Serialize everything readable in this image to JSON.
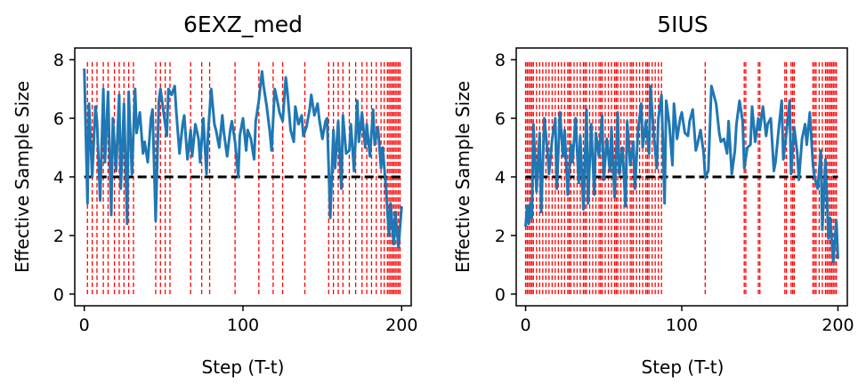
{
  "chart_data": [
    {
      "type": "line",
      "title": "6EXZ_med",
      "xlabel": "Step (T-t)",
      "ylabel": "Effective Sample Size",
      "xlim": [
        -6,
        206
      ],
      "ylim": [
        -0.4,
        8.4
      ],
      "xticks": [
        0,
        100,
        200
      ],
      "yticks": [
        0,
        2,
        4,
        6,
        8
      ],
      "threshold": {
        "y": 4,
        "style": "black dashed"
      },
      "resample_steps": [
        2,
        5,
        8,
        12,
        15,
        19,
        22,
        25,
        28,
        31,
        45,
        48,
        51,
        54,
        67,
        74,
        79,
        95,
        110,
        119,
        125,
        139,
        154,
        157,
        160,
        163,
        167,
        171,
        175,
        178,
        181,
        184,
        187,
        189,
        191,
        192,
        193,
        194,
        195,
        196,
        197,
        198,
        199
      ],
      "resample_line_style": "red dashed, y from 0 to 8",
      "series": [
        {
          "color": "#1f77b4",
          "x": [
            0,
            2,
            3,
            5,
            7,
            8,
            10,
            12,
            13,
            15,
            17,
            18,
            20,
            22,
            23,
            25,
            27,
            28,
            30,
            32,
            33,
            35,
            37,
            38,
            40,
            42,
            43,
            45,
            47,
            48,
            50,
            52,
            53,
            55,
            57,
            58,
            60,
            62,
            63,
            65,
            67,
            68,
            70,
            72,
            73,
            75,
            77,
            78,
            80,
            82,
            83,
            85,
            87,
            88,
            90,
            92,
            93,
            95,
            97,
            98,
            100,
            102,
            103,
            105,
            107,
            108,
            110,
            112,
            113,
            115,
            117,
            118,
            120,
            122,
            123,
            125,
            127,
            128,
            130,
            132,
            133,
            135,
            137,
            138,
            140,
            142,
            143,
            145,
            147,
            148,
            150,
            152,
            153,
            155,
            157,
            158,
            160,
            162,
            163,
            165,
            167,
            168,
            170,
            172,
            173,
            175,
            177,
            178,
            180,
            182,
            183,
            185,
            187,
            188,
            190,
            192,
            193,
            195,
            196,
            198,
            200
          ],
          "y": [
            7.7,
            3.1,
            6.5,
            4.0,
            6.4,
            5.9,
            3.2,
            7.0,
            4.5,
            6.9,
            2.7,
            6.0,
            4.2,
            6.8,
            3.6,
            6.5,
            2.4,
            6.9,
            4.1,
            7.0,
            5.5,
            6.2,
            4.8,
            5.2,
            4.5,
            6.0,
            6.3,
            2.5,
            6.6,
            7.0,
            6.2,
            5.4,
            7.0,
            6.8,
            7.1,
            6.2,
            4.8,
            5.8,
            6.1,
            4.6,
            5.6,
            4.7,
            5.8,
            5.3,
            4.5,
            6.0,
            4.1,
            5.5,
            7.0,
            5.8,
            5.6,
            5.0,
            6.1,
            5.5,
            4.7,
            5.6,
            5.9,
            5.2,
            4.0,
            5.4,
            6.0,
            4.9,
            5.6,
            5.3,
            4.6,
            5.9,
            6.6,
            7.6,
            7.1,
            6.4,
            5.5,
            4.9,
            7.0,
            6.5,
            6.2,
            5.9,
            7.4,
            6.9,
            5.6,
            5.2,
            6.4,
            5.8,
            6.1,
            5.4,
            5.7,
            6.3,
            6.8,
            6.1,
            6.5,
            6.0,
            5.3,
            5.9,
            6.0,
            2.6,
            5.6,
            4.3,
            5.9,
            3.6,
            6.1,
            4.8,
            4.9,
            5.8,
            4.2,
            6.6,
            5.2,
            6.2,
            5.0,
            5.8,
            4.7,
            6.3,
            5.1,
            5.7,
            4.3,
            5.0,
            3.7,
            2.0,
            3.1,
            1.7,
            2.8,
            1.6,
            3.0
          ]
        }
      ]
    },
    {
      "type": "line",
      "title": "5IUS",
      "xlabel": "Step (T-t)",
      "ylabel": "Effective Sample Size",
      "xlim": [
        -6,
        206
      ],
      "ylim": [
        -0.4,
        8.4
      ],
      "xticks": [
        0,
        100,
        200
      ],
      "yticks": [
        0,
        2,
        4,
        6,
        8
      ],
      "threshold": {
        "y": 4,
        "style": "black dashed"
      },
      "resample_steps": [
        0,
        1,
        2,
        3,
        4,
        5,
        7,
        9,
        11,
        13,
        15,
        17,
        19,
        21,
        23,
        25,
        27,
        28,
        29,
        31,
        33,
        35,
        37,
        38,
        39,
        41,
        43,
        45,
        47,
        48,
        49,
        51,
        53,
        55,
        57,
        58,
        59,
        61,
        63,
        65,
        67,
        68,
        69,
        71,
        73,
        75,
        77,
        78,
        79,
        81,
        83,
        85,
        87,
        115,
        140,
        141,
        149,
        150,
        166,
        167,
        170,
        171,
        172,
        184,
        185,
        186,
        188,
        190,
        192,
        193,
        194,
        195,
        196,
        197,
        198,
        199
      ],
      "resample_line_style": "red dashed, y from 0 to 8",
      "series": [
        {
          "color": "#1f77b4",
          "x": [
            0,
            1,
            2,
            3,
            4,
            5,
            7,
            9,
            10,
            12,
            14,
            15,
            17,
            19,
            20,
            22,
            24,
            25,
            27,
            29,
            30,
            32,
            34,
            35,
            37,
            39,
            40,
            42,
            44,
            45,
            47,
            49,
            50,
            52,
            54,
            55,
            57,
            59,
            60,
            62,
            64,
            65,
            67,
            69,
            70,
            72,
            74,
            75,
            77,
            79,
            80,
            82,
            84,
            85,
            87,
            89,
            90,
            92,
            94,
            95,
            97,
            99,
            100,
            102,
            104,
            105,
            107,
            109,
            110,
            112,
            114,
            115,
            117,
            119,
            120,
            122,
            124,
            125,
            127,
            129,
            130,
            132,
            134,
            135,
            137,
            139,
            140,
            142,
            144,
            145,
            147,
            149,
            150,
            152,
            154,
            155,
            157,
            159,
            160,
            162,
            164,
            165,
            167,
            169,
            170,
            172,
            174,
            175,
            177,
            179,
            180,
            182,
            184,
            185,
            187,
            189,
            190,
            192,
            194,
            195,
            197,
            199,
            200
          ],
          "y": [
            2.3,
            3.0,
            2.4,
            3.1,
            2.6,
            5.8,
            3.5,
            5.5,
            2.8,
            6.0,
            4.9,
            4.1,
            5.3,
            6.0,
            3.6,
            6.2,
            4.7,
            5.6,
            3.4,
            5.1,
            4.5,
            6.0,
            3.8,
            5.4,
            2.9,
            6.3,
            3.1,
            5.8,
            3.4,
            5.5,
            4.7,
            6.1,
            3.9,
            5.3,
            4.2,
            5.7,
            3.3,
            6.2,
            4.1,
            5.0,
            3.0,
            5.9,
            4.4,
            5.2,
            3.6,
            5.6,
            6.5,
            5.0,
            5.9,
            4.8,
            7.1,
            5.5,
            4.3,
            6.0,
            6.8,
            3.1,
            6.6,
            5.8,
            4.4,
            6.5,
            5.3,
            6.0,
            6.2,
            5.5,
            5.4,
            5.9,
            6.3,
            4.9,
            5.1,
            5.6,
            4.8,
            4.0,
            4.2,
            7.1,
            6.9,
            6.5,
            5.5,
            5.2,
            5.3,
            4.8,
            5.9,
            4.1,
            4.9,
            5.8,
            6.6,
            5.9,
            4.3,
            5.0,
            5.1,
            6.4,
            5.2,
            6.0,
            5.6,
            6.4,
            5.4,
            5.8,
            6.0,
            4.2,
            4.5,
            5.6,
            6.6,
            4.6,
            5.5,
            6.6,
            4.1,
            5.7,
            4.8,
            3.9,
            5.3,
            5.8,
            5.1,
            6.2,
            4.4,
            4.0,
            3.6,
            4.9,
            2.2,
            4.6,
            1.9,
            2.6,
            1.1,
            2.5,
            1.2
          ]
        }
      ]
    }
  ]
}
